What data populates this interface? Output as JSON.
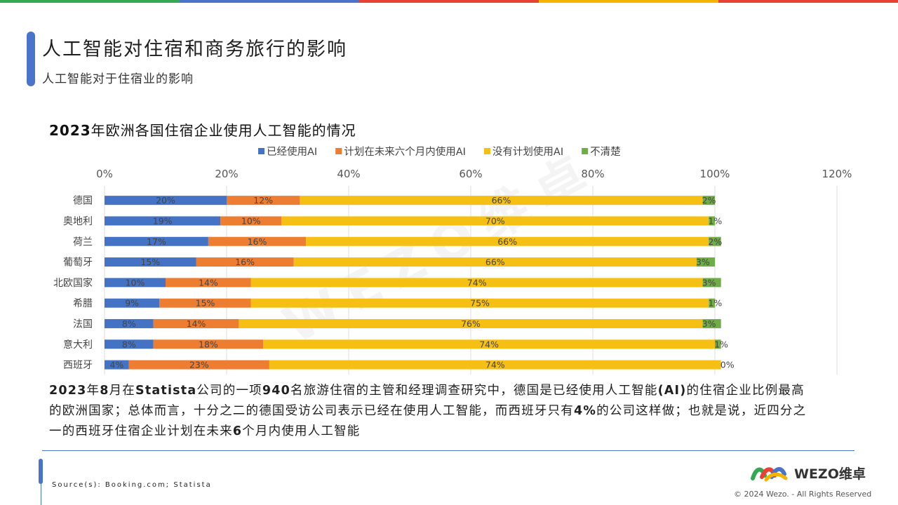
{
  "header": {
    "title": "人工智能对住宿和商务旅行的影响",
    "subtitle": "人工智能对于住宿业的影响",
    "bar_colors": [
      "#34a853",
      "#4a74c9",
      "#e94235",
      "#f4b400",
      "#e94235"
    ]
  },
  "chart_title": {
    "bold": "2023",
    "rest": "年欧洲各国住宿企业使用人工智能的情况"
  },
  "watermark": "WEZO维卓",
  "chart_data": {
    "type": "bar",
    "orientation": "horizontal",
    "stacked": true,
    "legend_position": "top",
    "grid": true,
    "xlim": [
      0,
      120
    ],
    "x_ticks": [
      "0%",
      "20%",
      "40%",
      "60%",
      "80%",
      "100%",
      "120%"
    ],
    "categories": [
      "德国",
      "奥地利",
      "荷兰",
      "葡萄牙",
      "北欧国家",
      "希腊",
      "法国",
      "意大利",
      "西班牙"
    ],
    "series": [
      {
        "name": "已经使用AI",
        "color": "#4472c4",
        "values": [
          20,
          19,
          17,
          15,
          10,
          9,
          8,
          8,
          4
        ]
      },
      {
        "name": "计划在未来六个月内使用AI",
        "color": "#ed7d31",
        "values": [
          12,
          10,
          16,
          16,
          14,
          15,
          14,
          18,
          23
        ]
      },
      {
        "name": "没有计划使用AI",
        "color": "#f5bf13",
        "values": [
          66,
          70,
          66,
          66,
          74,
          75,
          76,
          74,
          74
        ]
      },
      {
        "name": "不清楚",
        "color": "#70ad47",
        "values": [
          2,
          1,
          2,
          3,
          3,
          1,
          3,
          1,
          0
        ]
      }
    ]
  },
  "body": {
    "p1": "2023",
    "p2": "年",
    "p3": "8",
    "p4": "月在",
    "p5": "Statista",
    "p6": "公司的一项",
    "p7": "940",
    "p8": "名旅游住宿的主管和经理调查研究中，德国是已经使用人工智能",
    "p9": "(AI)",
    "p10": "的住宿企业比例最高的欧洲国家；总体而言，十分之二的德国受访公司表示已经在使用人工智能，而西班牙只有",
    "p11": "4%",
    "p12": "的公司这样做；也就是说，近四分之一的西班牙住宿企业计划在未来",
    "p13": "6",
    "p14": "个月内使用人工智能"
  },
  "footer": {
    "source": "Source(s): Booking.com; Statista",
    "logo_text": "WEZO维卓",
    "copyright": "© 2024 Wezo. - All Rights Reserved"
  }
}
